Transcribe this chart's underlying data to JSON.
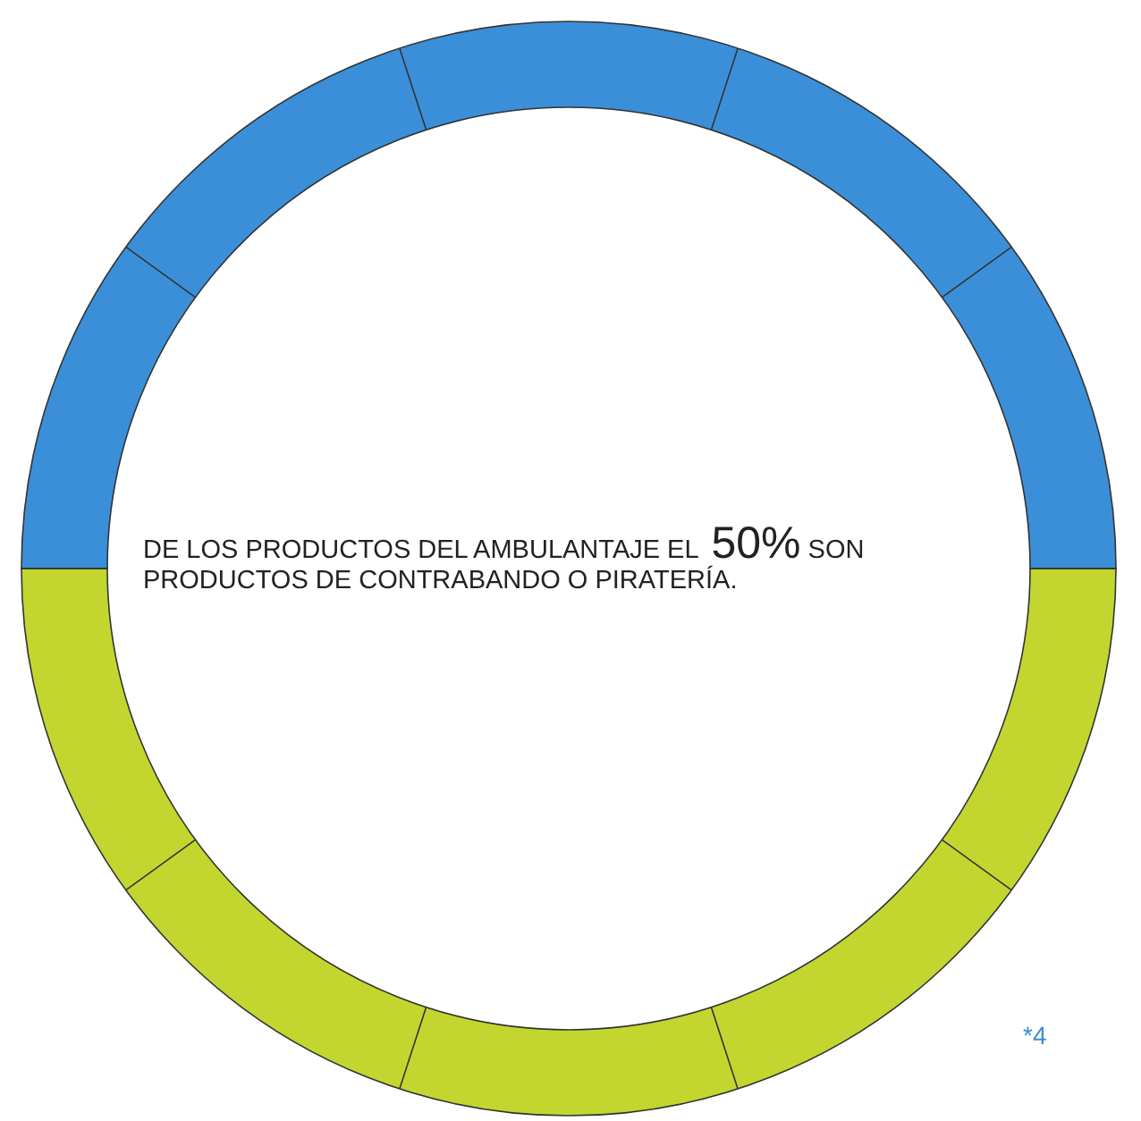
{
  "chart_data": {
    "type": "donut",
    "categories": [
      null,
      null
    ],
    "values": [
      50,
      50
    ],
    "colors": [
      "#3b8fd8",
      "#c3d630"
    ],
    "annotations": [
      "DE LOS PRODUCTOS DEL AMBULANTAJE EL 50% SON PRODUCTOS DE CONTRABANDO O PIRATERÍA.",
      "*4"
    ]
  }
}
